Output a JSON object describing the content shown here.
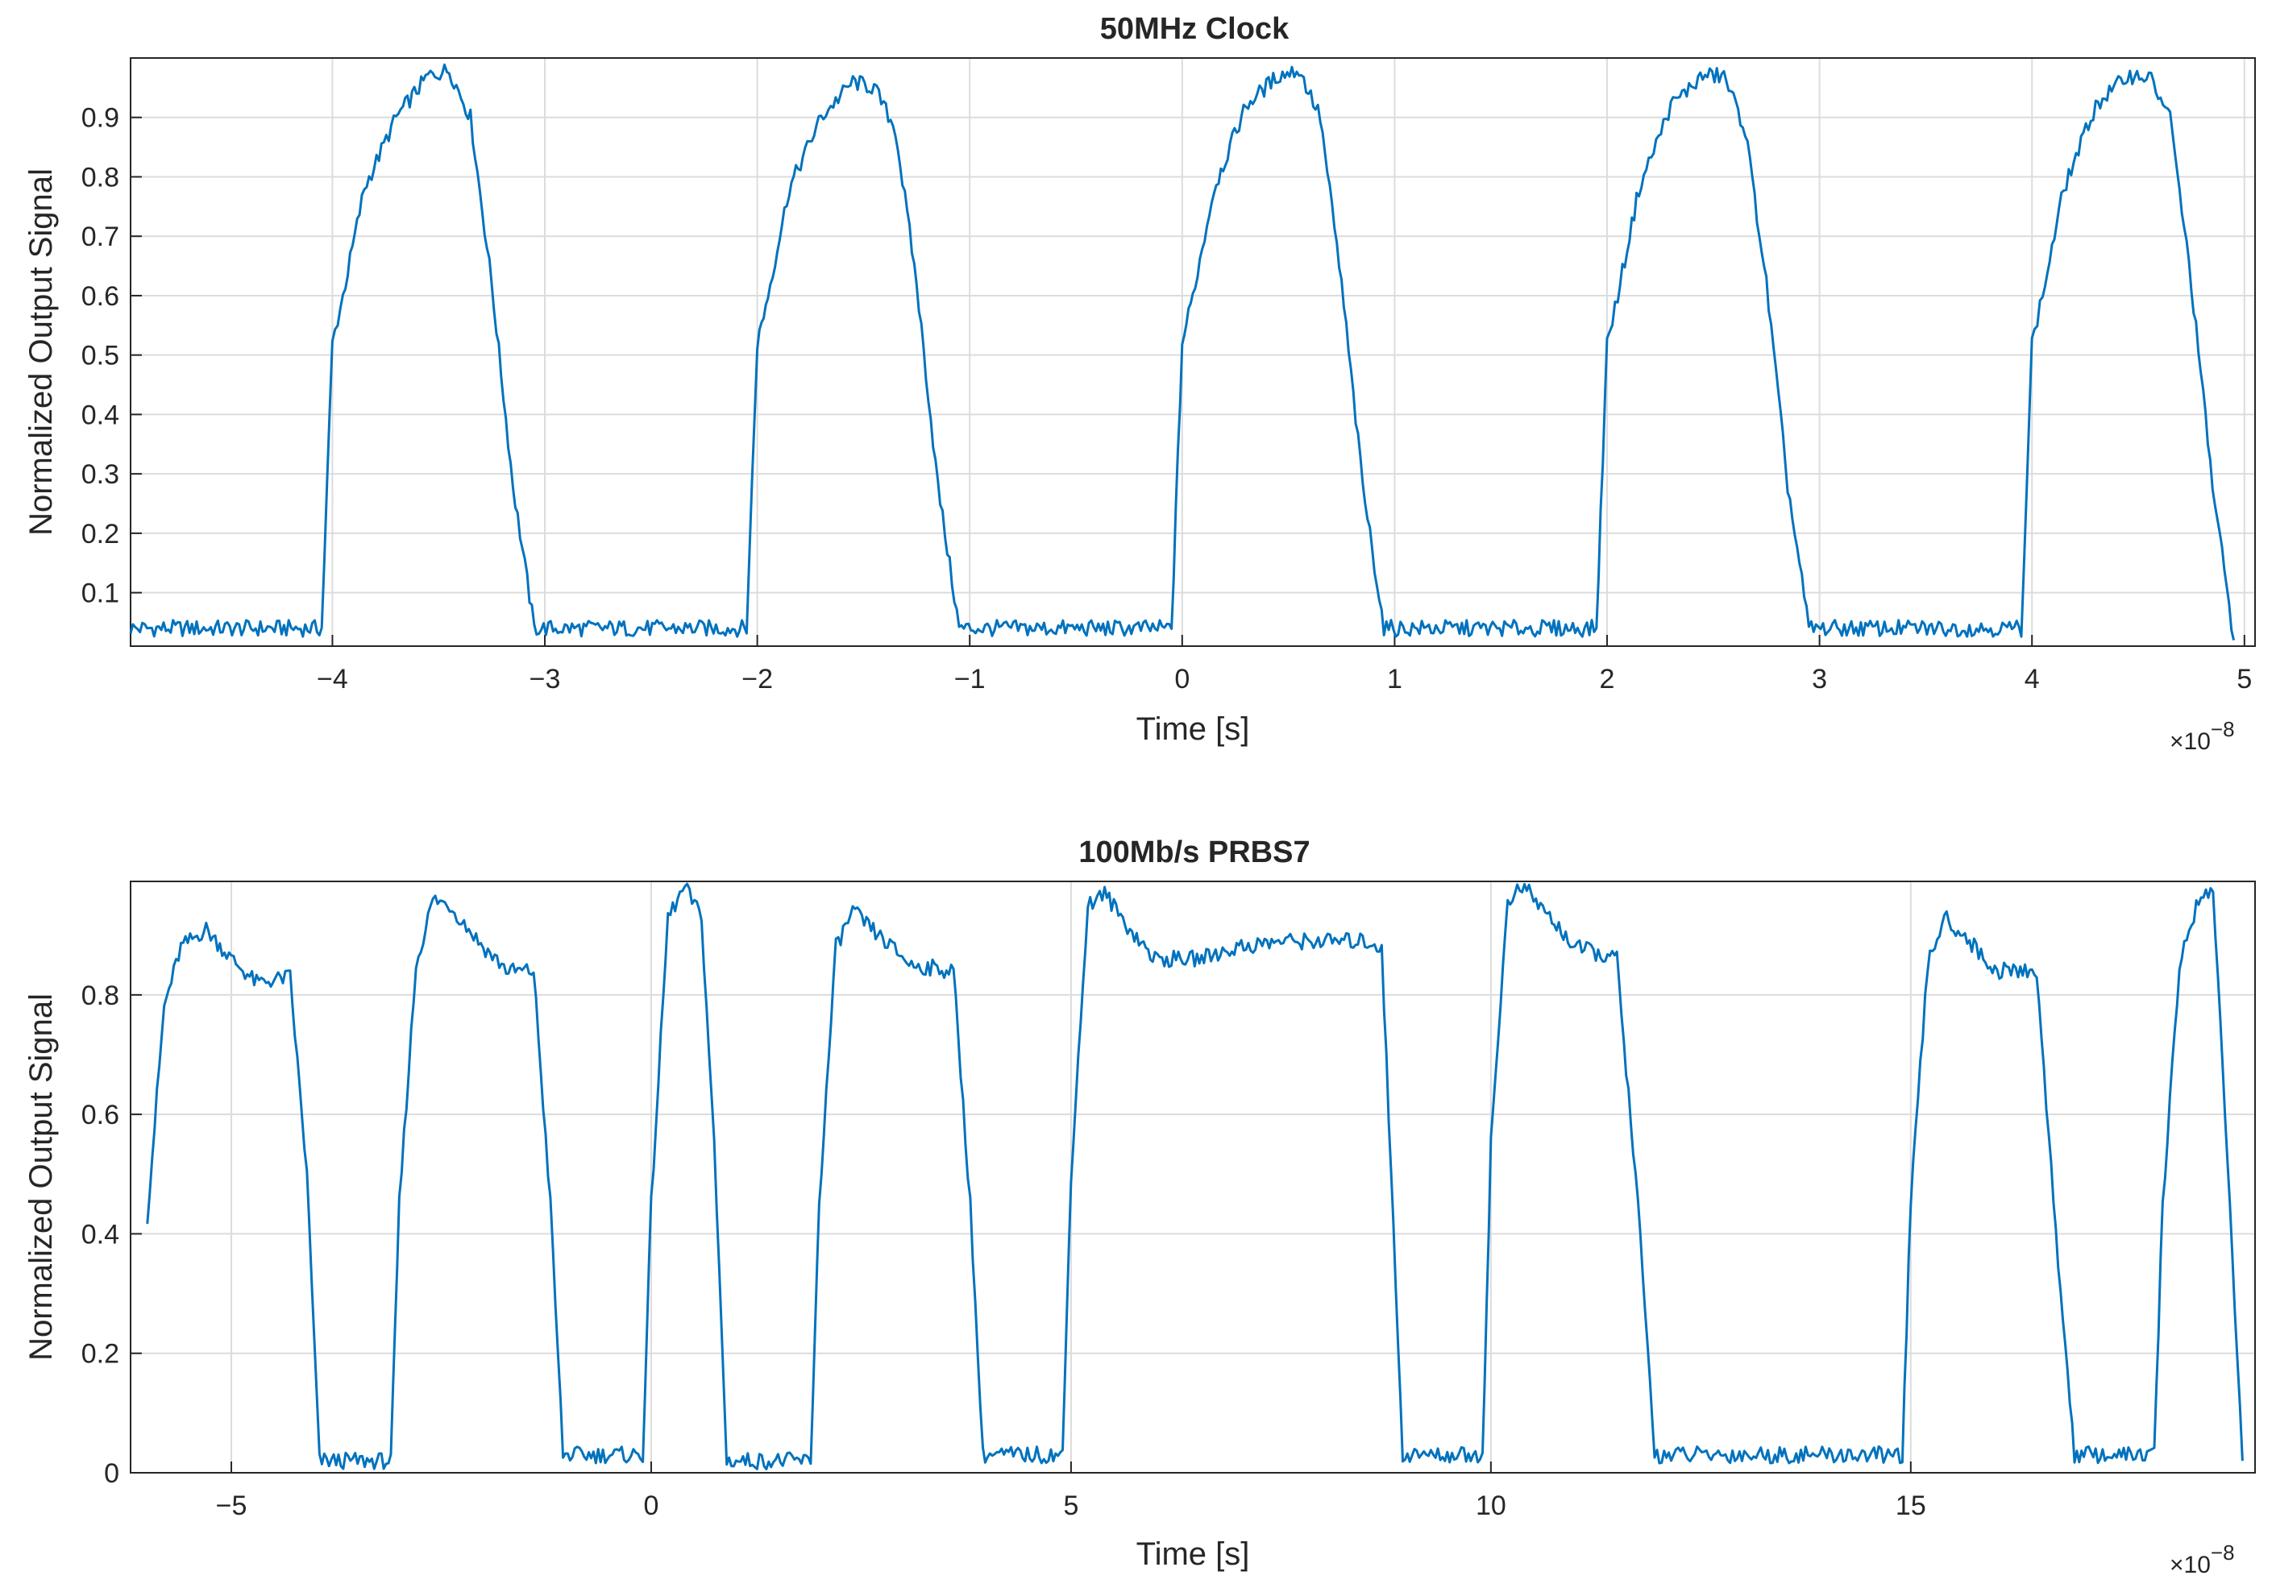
{
  "chart_data": [
    {
      "type": "line",
      "title": "50MHz Clock",
      "xlabel": "Time [s]",
      "ylabel": "Normalized Output Signal",
      "x_multiplier_label": "×10",
      "x_multiplier_exp": "−8",
      "xlim": [
        -4.95,
        5.05
      ],
      "ylim": [
        0.01,
        1.0
      ],
      "grid": true,
      "xticks": [
        -4,
        -3,
        -2,
        -1,
        0,
        1,
        2,
        3,
        4,
        5
      ],
      "xtick_labels": [
        "−4",
        "−3",
        "−2",
        "−1",
        "0",
        "1",
        "2",
        "3",
        "4",
        "5"
      ],
      "yticks": [
        0.1,
        0.2,
        0.3,
        0.4,
        0.5,
        0.6,
        0.7,
        0.8,
        0.9
      ],
      "ytick_labels": [
        "0.1",
        "0.2",
        "0.3",
        "0.4",
        "0.5",
        "0.6",
        "0.7",
        "0.8",
        "0.9"
      ],
      "line_color": "#0072BD",
      "series": [
        {
          "x": [
            -4.95,
            -4.05,
            -4.0,
            -3.95,
            -3.85,
            -3.7,
            -3.55,
            -3.45,
            -3.35,
            -3.25,
            -3.15,
            -3.05,
            -2.05,
            -2.0,
            -1.95,
            -1.85,
            -1.7,
            -1.55,
            -1.45,
            -1.35,
            -1.25,
            -1.15,
            -1.05,
            -0.05,
            0.0,
            0.05,
            0.15,
            0.3,
            0.45,
            0.55,
            0.65,
            0.75,
            0.85,
            0.95,
            1.95,
            2.0,
            2.05,
            2.15,
            2.3,
            2.45,
            2.55,
            2.65,
            2.75,
            2.85,
            2.95,
            3.95,
            4.0,
            4.05,
            4.15,
            4.3,
            4.45,
            4.55,
            4.65,
            4.75,
            4.85,
            4.95
          ],
          "y": [
            0.04,
            0.04,
            0.52,
            0.6,
            0.78,
            0.9,
            0.97,
            0.98,
            0.9,
            0.62,
            0.28,
            0.04,
            0.04,
            0.52,
            0.6,
            0.78,
            0.9,
            0.96,
            0.95,
            0.88,
            0.62,
            0.28,
            0.04,
            0.04,
            0.52,
            0.6,
            0.78,
            0.92,
            0.97,
            0.98,
            0.9,
            0.62,
            0.28,
            0.04,
            0.04,
            0.52,
            0.6,
            0.78,
            0.92,
            0.97,
            0.97,
            0.88,
            0.62,
            0.28,
            0.04,
            0.04,
            0.52,
            0.6,
            0.78,
            0.92,
            0.97,
            0.97,
            0.9,
            0.62,
            0.28,
            0.02
          ]
        }
      ]
    },
    {
      "type": "line",
      "title": "100Mb/s PRBS7",
      "xlabel": "Time [s]",
      "ylabel": "Normalized Output Signal",
      "x_multiplier_label": "×10",
      "x_multiplier_exp": "−8",
      "xlim": [
        -6.2,
        19.1
      ],
      "ylim": [
        0,
        0.99
      ],
      "grid": true,
      "xticks": [
        -5,
        0,
        5,
        10,
        15
      ],
      "xtick_labels": [
        "−5",
        "0",
        "5",
        "10",
        "15"
      ],
      "yticks": [
        0,
        0.2,
        0.4,
        0.6,
        0.8
      ],
      "ytick_labels": [
        "0",
        "0.2",
        "0.4",
        "0.6",
        "0.8"
      ],
      "line_color": "#0072BD",
      "series": [
        {
          "x": [
            -6.0,
            -5.8,
            -5.6,
            -5.3,
            -5.0,
            -4.7,
            -4.3,
            -4.1,
            -3.95,
            -3.1,
            -3.0,
            -2.8,
            -2.6,
            -2.4,
            -2.0,
            -1.7,
            -1.4,
            -1.2,
            -1.05,
            -0.1,
            0.0,
            0.2,
            0.4,
            0.6,
            0.75,
            0.9,
            1.9,
            2.0,
            2.2,
            2.4,
            2.7,
            3.1,
            3.6,
            3.8,
            3.95,
            4.9,
            5.0,
            5.2,
            5.4,
            5.7,
            6.0,
            6.5,
            7.0,
            7.5,
            8.0,
            8.5,
            8.7,
            8.95,
            9.9,
            10.0,
            10.2,
            10.4,
            10.7,
            11.0,
            11.5,
            11.75,
            11.95,
            14.9,
            15.0,
            15.2,
            15.4,
            15.7,
            16.0,
            16.5,
            16.7,
            16.95,
            17.9,
            18.0,
            18.2,
            18.4,
            18.6,
            18.8,
            18.95
          ],
          "y": [
            0.43,
            0.78,
            0.88,
            0.91,
            0.86,
            0.82,
            0.83,
            0.5,
            0.02,
            0.02,
            0.45,
            0.85,
            0.96,
            0.95,
            0.88,
            0.84,
            0.84,
            0.45,
            0.03,
            0.03,
            0.45,
            0.93,
            0.98,
            0.93,
            0.55,
            0.02,
            0.02,
            0.45,
            0.88,
            0.94,
            0.9,
            0.85,
            0.84,
            0.45,
            0.03,
            0.03,
            0.5,
            0.95,
            0.97,
            0.91,
            0.86,
            0.86,
            0.88,
            0.89,
            0.89,
            0.89,
            0.88,
            0.03,
            0.03,
            0.55,
            0.96,
            0.98,
            0.93,
            0.88,
            0.86,
            0.45,
            0.03,
            0.03,
            0.45,
            0.85,
            0.93,
            0.89,
            0.84,
            0.84,
            0.45,
            0.03,
            0.03,
            0.45,
            0.85,
            0.95,
            0.98,
            0.45,
            0.02
          ]
        }
      ]
    }
  ]
}
